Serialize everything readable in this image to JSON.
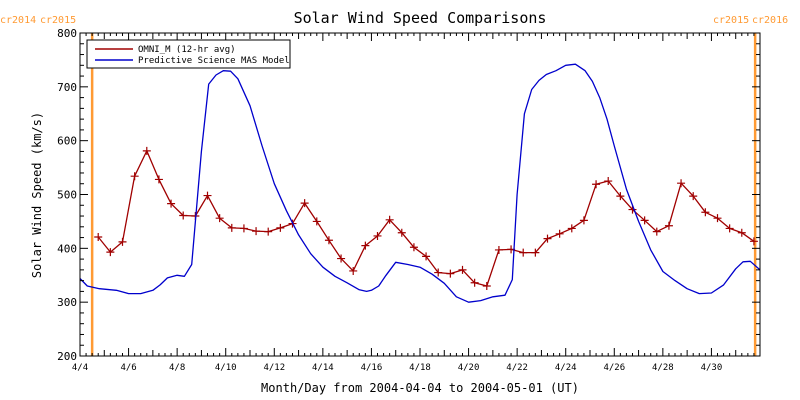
{
  "chart_data": {
    "type": "line",
    "title": "Solar Wind Speed Comparisons",
    "xlabel": "Month/Day from 2004-04-04 to 2004-05-01 (UT)",
    "ylabel": "Solar Wind Speed (km/s)",
    "x_unit": "day of April 2004",
    "xlim": [
      4,
      32
    ],
    "ylim": [
      200,
      800
    ],
    "y_ticks": [
      200,
      300,
      400,
      500,
      600,
      700,
      800
    ],
    "x_ticks": [
      {
        "x": 4,
        "label": "4/4"
      },
      {
        "x": 6,
        "label": "4/6"
      },
      {
        "x": 8,
        "label": "4/8"
      },
      {
        "x": 10,
        "label": "4/10"
      },
      {
        "x": 12,
        "label": "4/12"
      },
      {
        "x": 14,
        "label": "4/14"
      },
      {
        "x": 16,
        "label": "4/16"
      },
      {
        "x": 18,
        "label": "4/18"
      },
      {
        "x": 20,
        "label": "4/20"
      },
      {
        "x": 22,
        "label": "4/22"
      },
      {
        "x": 24,
        "label": "4/24"
      },
      {
        "x": 26,
        "label": "4/26"
      },
      {
        "x": 28,
        "label": "4/28"
      },
      {
        "x": 30,
        "label": "4/30"
      }
    ],
    "grid": false,
    "legend_position": "top-left",
    "boundary_lines": [
      {
        "x": 4.5,
        "labels": [
          "cr2014",
          "cr2015"
        ],
        "color": "#ff9a33"
      },
      {
        "x": 31.8,
        "labels": [
          "cr2015",
          "cr2016"
        ],
        "color": "#ff9a33"
      }
    ],
    "series": [
      {
        "name": "OMNI_M (12-hr avg)",
        "color": "#a00000",
        "marker": "plus",
        "x": [
          4.75,
          5.25,
          5.75,
          6.25,
          6.75,
          7.25,
          7.75,
          8.25,
          8.75,
          9.25,
          9.75,
          10.25,
          10.75,
          11.25,
          11.75,
          12.25,
          12.75,
          13.25,
          13.75,
          14.25,
          14.75,
          15.25,
          15.75,
          16.25,
          16.75,
          17.25,
          17.75,
          18.25,
          18.75,
          19.25,
          19.75,
          20.25,
          20.75,
          21.25,
          21.75,
          22.25,
          22.75,
          23.25,
          23.75,
          24.25,
          24.75,
          25.25,
          25.75,
          26.25,
          26.75,
          27.25,
          27.75,
          28.25,
          28.75,
          29.25,
          29.75,
          30.25,
          30.75,
          31.25,
          31.75
        ],
        "y": [
          421,
          393,
          412,
          534,
          581,
          528,
          483,
          461,
          460,
          498,
          456,
          438,
          437,
          432,
          431,
          438,
          446,
          484,
          450,
          415,
          381,
          358,
          405,
          423,
          453,
          429,
          402,
          385,
          355,
          353,
          360,
          336,
          330,
          397,
          398,
          392,
          392,
          418,
          427,
          437,
          452,
          519,
          525,
          497,
          472,
          452,
          431,
          442,
          521,
          497,
          467,
          456,
          437,
          429,
          413
        ]
      },
      {
        "name": "Predictive Science MAS Model",
        "color": "#0000cc",
        "marker": "none",
        "x": [
          4.0,
          4.3,
          4.8,
          5.5,
          6.0,
          6.5,
          7.0,
          7.3,
          7.6,
          8.0,
          8.3,
          8.6,
          9.0,
          9.3,
          9.6,
          9.9,
          10.2,
          10.5,
          11.0,
          11.5,
          12.0,
          12.5,
          13.0,
          13.5,
          14.0,
          14.5,
          15.0,
          15.5,
          15.8,
          16.0,
          16.3,
          16.6,
          17.0,
          17.5,
          18.0,
          18.5,
          19.0,
          19.5,
          20.0,
          20.5,
          21.0,
          21.5,
          21.8,
          22.0,
          22.3,
          22.6,
          22.9,
          23.2,
          23.6,
          24.0,
          24.4,
          24.8,
          25.1,
          25.4,
          25.7,
          26.0,
          26.5,
          27.0,
          27.5,
          28.0,
          28.5,
          29.0,
          29.5,
          30.0,
          30.5,
          31.0,
          31.3,
          31.6,
          32.0
        ],
        "y": [
          344,
          330,
          325,
          322,
          316,
          316,
          322,
          332,
          345,
          350,
          348,
          370,
          580,
          705,
          722,
          730,
          729,
          715,
          665,
          590,
          520,
          470,
          425,
          390,
          365,
          348,
          336,
          323,
          320,
          322,
          330,
          350,
          374,
          370,
          365,
          352,
          335,
          310,
          300,
          303,
          310,
          313,
          342,
          500,
          650,
          695,
          712,
          723,
          730,
          740,
          742,
          730,
          710,
          680,
          640,
          590,
          510,
          450,
          397,
          357,
          340,
          325,
          316,
          317,
          332,
          362,
          375,
          376,
          360
        ]
      }
    ]
  }
}
